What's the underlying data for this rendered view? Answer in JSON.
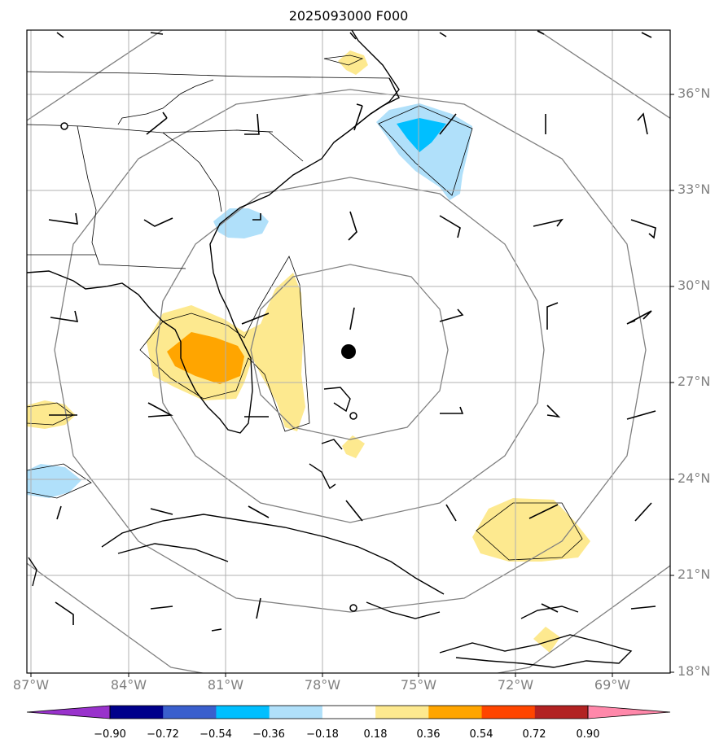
{
  "title": "2025093000 F000",
  "latitude_labels": [
    "36°N",
    "33°N",
    "30°N",
    "27°N",
    "24°N",
    "21°N",
    "18°N"
  ],
  "longitude_labels": [
    "87°W",
    "84°W",
    "81°W",
    "78°W",
    "75°W",
    "72°W",
    "69°W"
  ],
  "colorbar": {
    "tick_labels": [
      "−0.90",
      "−0.72",
      "−0.54",
      "−0.36",
      "−0.18",
      "0.18",
      "0.36",
      "0.54",
      "0.72",
      "0.90"
    ],
    "bin_colors": [
      "#9932cc",
      "#00008b",
      "#3a5fcd",
      "#00bfff",
      "#b0e0fa",
      "#ffffff",
      "#fde98f",
      "#ffa500",
      "#ff4500",
      "#b22222",
      "#ff88aa"
    ],
    "extend": "both"
  },
  "field_colors": {
    "light_blue": "#b0e0fa",
    "blue": "#00bfff",
    "light_yellow": "#fde98f",
    "orange": "#ffa500"
  },
  "storm_center": {
    "lon": -76.8,
    "lat": 28.0
  }
}
